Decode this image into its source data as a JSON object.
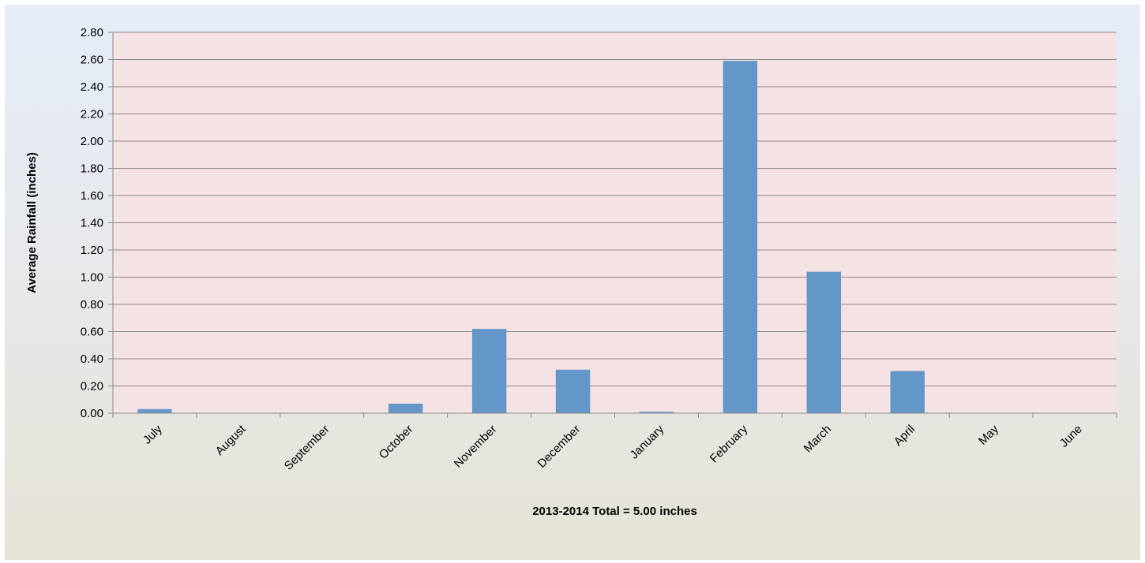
{
  "chart_data": {
    "type": "bar",
    "title": "",
    "xlabel": "2013-2014 Total = 5.00 inches",
    "ylabel": "Average Rainfall (inches)",
    "ylim": [
      0,
      2.8
    ],
    "y_ticks": [
      "0.00",
      "0.20",
      "0.40",
      "0.60",
      "0.80",
      "1.00",
      "1.20",
      "1.40",
      "1.60",
      "1.80",
      "2.00",
      "2.20",
      "2.40",
      "2.60",
      "2.80"
    ],
    "categories": [
      "July",
      "August",
      "September",
      "October",
      "November",
      "December",
      "January",
      "February",
      "March",
      "April",
      "May",
      "June"
    ],
    "values": [
      0.03,
      0.0,
      0.0,
      0.07,
      0.62,
      0.32,
      0.01,
      2.59,
      1.04,
      0.31,
      0.0,
      0.0
    ],
    "grid": true,
    "legend": "none",
    "colors": {
      "bar": "#6397c9",
      "plot_background": "#f5e2e2",
      "gridline": "#8a8a8a"
    }
  }
}
